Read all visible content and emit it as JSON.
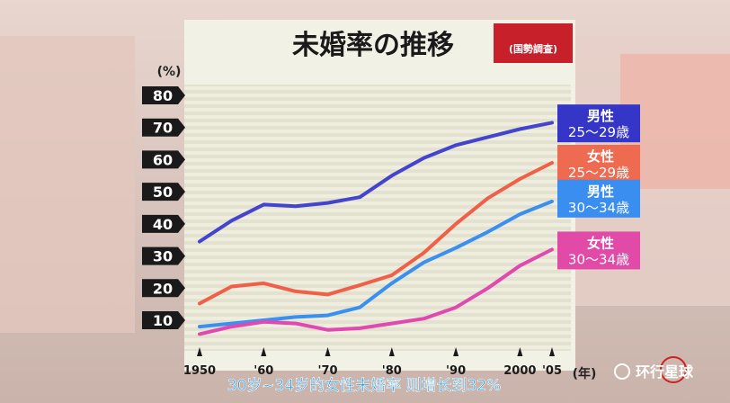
{
  "title": "未婚率の推移",
  "source_badge": "(国勢調査)",
  "y_unit": "(%)",
  "x_unit": "(年)",
  "subtitle": "30岁~34岁的女性未婚率 则增长到32%",
  "watermark": "环行星球",
  "chart_data": {
    "type": "line",
    "title": "未婚率の推移",
    "ylabel": "(%)",
    "xlabel": "(年)",
    "ylim": [
      5,
      80
    ],
    "yticks": [
      10,
      20,
      30,
      40,
      50,
      60,
      70,
      80
    ],
    "x": [
      1950,
      1955,
      1960,
      1965,
      1970,
      1975,
      1980,
      1985,
      1990,
      1995,
      2000,
      2005
    ],
    "xtick_values": [
      1950,
      1960,
      1970,
      1980,
      1990,
      2000,
      2005
    ],
    "xtick_labels": [
      "1950",
      "'60",
      "'70",
      "'80",
      "'90",
      "2000",
      "'05"
    ],
    "series": [
      {
        "name": "男性 25〜29歳",
        "label_line1": "男性",
        "label_line2": "25〜29歳",
        "color": "#4444cc",
        "label_bg": "#3535c8",
        "values": [
          34.5,
          41,
          46,
          45.5,
          46.5,
          48.3,
          55,
          60.5,
          64.5,
          67,
          69.5,
          71.5
        ]
      },
      {
        "name": "女性 25〜29歳",
        "label_line1": "女性",
        "label_line2": "25〜29歳",
        "color": "#f06048",
        "label_bg": "#ee6a50",
        "values": [
          15.2,
          20.5,
          21.5,
          19,
          18,
          20.9,
          24,
          31,
          40,
          48,
          54,
          59
        ]
      },
      {
        "name": "男性 30〜34歳",
        "label_line1": "男性",
        "label_line2": "30〜34歳",
        "color": "#3a90f0",
        "label_bg": "#3a8ef0",
        "values": [
          8,
          9,
          10,
          11,
          11.5,
          14,
          21.5,
          28,
          32.5,
          37.5,
          43,
          47
        ]
      },
      {
        "name": "女性 30〜34歳",
        "label_line1": "女性",
        "label_line2": "30〜34歳",
        "color": "#e04ab0",
        "label_bg": "#e24aa8",
        "values": [
          5.7,
          8,
          9.5,
          9,
          7,
          7.5,
          9,
          10.5,
          14,
          20,
          27,
          32
        ]
      }
    ]
  }
}
